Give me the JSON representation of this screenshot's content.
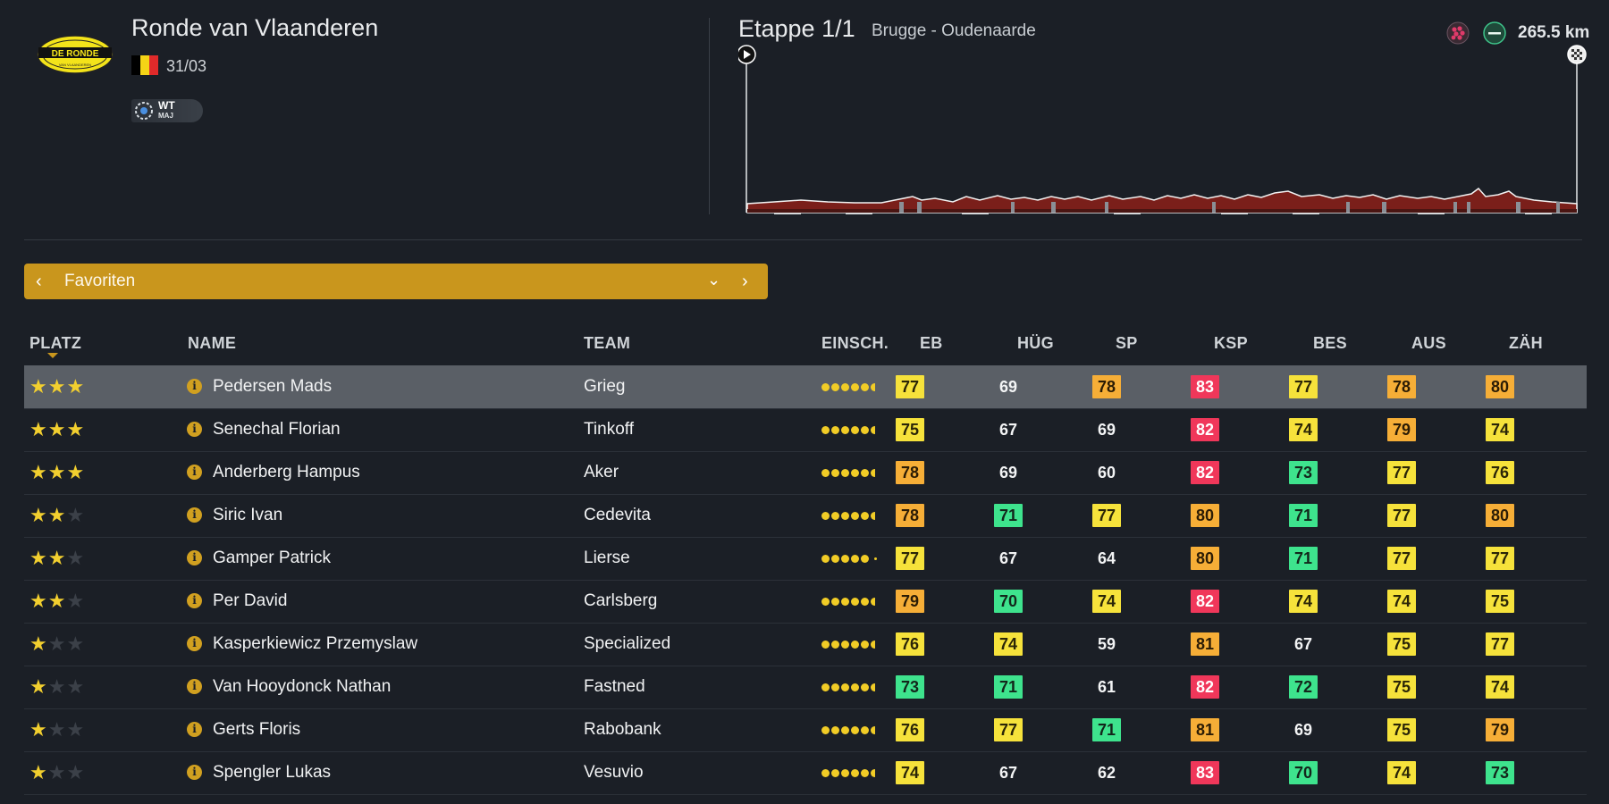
{
  "race": {
    "title": "Ronde van Vlaanderen",
    "date": "31/03",
    "logo_text": "DE RONDE",
    "logo_subtext": "VAN VLAANDEREN",
    "flag_colors": [
      "#000000",
      "#f5d416",
      "#e02a2a"
    ],
    "category_badge": {
      "main": "WT",
      "sub": "MAJ"
    }
  },
  "stage": {
    "title": "Etappe 1/1",
    "route": "Brugge - Oudenaarde",
    "distance": "265.5 km",
    "icons": [
      "cobblestone-icon",
      "flat-stage-icon"
    ]
  },
  "dropdown": {
    "label": "Favoriten"
  },
  "table": {
    "columns": {
      "platz": "PLATZ",
      "name": "NAME",
      "team": "TEAM",
      "einsch": "EINSCH.",
      "eb": "EB",
      "hug": "HÜG",
      "sp": "SP",
      "ksp": "KSP",
      "bes": "BES",
      "aus": "AUS",
      "zah": "ZÄH"
    },
    "sort_column": "PLATZ",
    "stat_colors": {
      "green": "#3ee38d",
      "yellow": "#f6e23b",
      "orange": "#f6ae37",
      "red": "#f0375a"
    },
    "rows": [
      {
        "stars": 3,
        "name": "Pedersen Mads",
        "team": "Grieg",
        "dots": 6,
        "selected": true,
        "stats": [
          [
            "77",
            "yellow"
          ],
          [
            "69",
            "plain"
          ],
          [
            "78",
            "orange"
          ],
          [
            "83",
            "red"
          ],
          [
            "77",
            "yellow"
          ],
          [
            "78",
            "orange"
          ],
          [
            "80",
            "orange"
          ]
        ]
      },
      {
        "stars": 3,
        "name": "Senechal Florian",
        "team": "Tinkoff",
        "dots": 6,
        "stats": [
          [
            "75",
            "yellow"
          ],
          [
            "67",
            "plain"
          ],
          [
            "69",
            "plain"
          ],
          [
            "82",
            "red"
          ],
          [
            "74",
            "yellow"
          ],
          [
            "79",
            "orange"
          ],
          [
            "74",
            "yellow"
          ]
        ]
      },
      {
        "stars": 3,
        "name": "Anderberg Hampus",
        "team": "Aker",
        "dots": 6,
        "stats": [
          [
            "78",
            "orange"
          ],
          [
            "69",
            "plain"
          ],
          [
            "60",
            "plain"
          ],
          [
            "82",
            "red"
          ],
          [
            "73",
            "green"
          ],
          [
            "77",
            "yellow"
          ],
          [
            "76",
            "yellow"
          ]
        ]
      },
      {
        "stars": 2,
        "name": "Siric Ivan",
        "team": "Cedevita",
        "dots": 6,
        "stats": [
          [
            "78",
            "orange"
          ],
          [
            "71",
            "green"
          ],
          [
            "77",
            "yellow"
          ],
          [
            "80",
            "orange"
          ],
          [
            "71",
            "green"
          ],
          [
            "77",
            "yellow"
          ],
          [
            "80",
            "orange"
          ]
        ]
      },
      {
        "stars": 2,
        "name": "Gamper Patrick",
        "team": "Lierse",
        "dots": 5,
        "stats": [
          [
            "77",
            "yellow"
          ],
          [
            "67",
            "plain"
          ],
          [
            "64",
            "plain"
          ],
          [
            "80",
            "orange"
          ],
          [
            "71",
            "green"
          ],
          [
            "77",
            "yellow"
          ],
          [
            "77",
            "yellow"
          ]
        ]
      },
      {
        "stars": 2,
        "name": "Per David",
        "team": "Carlsberg",
        "dots": 6,
        "stats": [
          [
            "79",
            "orange"
          ],
          [
            "70",
            "green"
          ],
          [
            "74",
            "yellow"
          ],
          [
            "82",
            "red"
          ],
          [
            "74",
            "yellow"
          ],
          [
            "74",
            "yellow"
          ],
          [
            "75",
            "yellow"
          ]
        ]
      },
      {
        "stars": 1,
        "name": "Kasperkiewicz Przemyslaw",
        "team": "Specialized",
        "dots": 6,
        "stats": [
          [
            "76",
            "yellow"
          ],
          [
            "74",
            "yellow"
          ],
          [
            "59",
            "plain"
          ],
          [
            "81",
            "orange"
          ],
          [
            "67",
            "plain"
          ],
          [
            "75",
            "yellow"
          ],
          [
            "77",
            "yellow"
          ]
        ]
      },
      {
        "stars": 1,
        "name": "Van Hooydonck Nathan",
        "team": "Fastned",
        "dots": 6,
        "stats": [
          [
            "73",
            "green"
          ],
          [
            "71",
            "green"
          ],
          [
            "61",
            "plain"
          ],
          [
            "82",
            "red"
          ],
          [
            "72",
            "green"
          ],
          [
            "75",
            "yellow"
          ],
          [
            "74",
            "yellow"
          ]
        ]
      },
      {
        "stars": 1,
        "name": "Gerts Floris",
        "team": "Rabobank",
        "dots": 6,
        "stats": [
          [
            "76",
            "yellow"
          ],
          [
            "77",
            "yellow"
          ],
          [
            "71",
            "green"
          ],
          [
            "81",
            "orange"
          ],
          [
            "69",
            "plain"
          ],
          [
            "75",
            "yellow"
          ],
          [
            "79",
            "orange"
          ]
        ]
      },
      {
        "stars": 1,
        "name": "Spengler Lukas",
        "team": "Vesuvio",
        "dots": 6,
        "stats": [
          [
            "74",
            "yellow"
          ],
          [
            "67",
            "plain"
          ],
          [
            "62",
            "plain"
          ],
          [
            "83",
            "red"
          ],
          [
            "70",
            "green"
          ],
          [
            "74",
            "yellow"
          ],
          [
            "73",
            "green"
          ]
        ]
      }
    ]
  }
}
